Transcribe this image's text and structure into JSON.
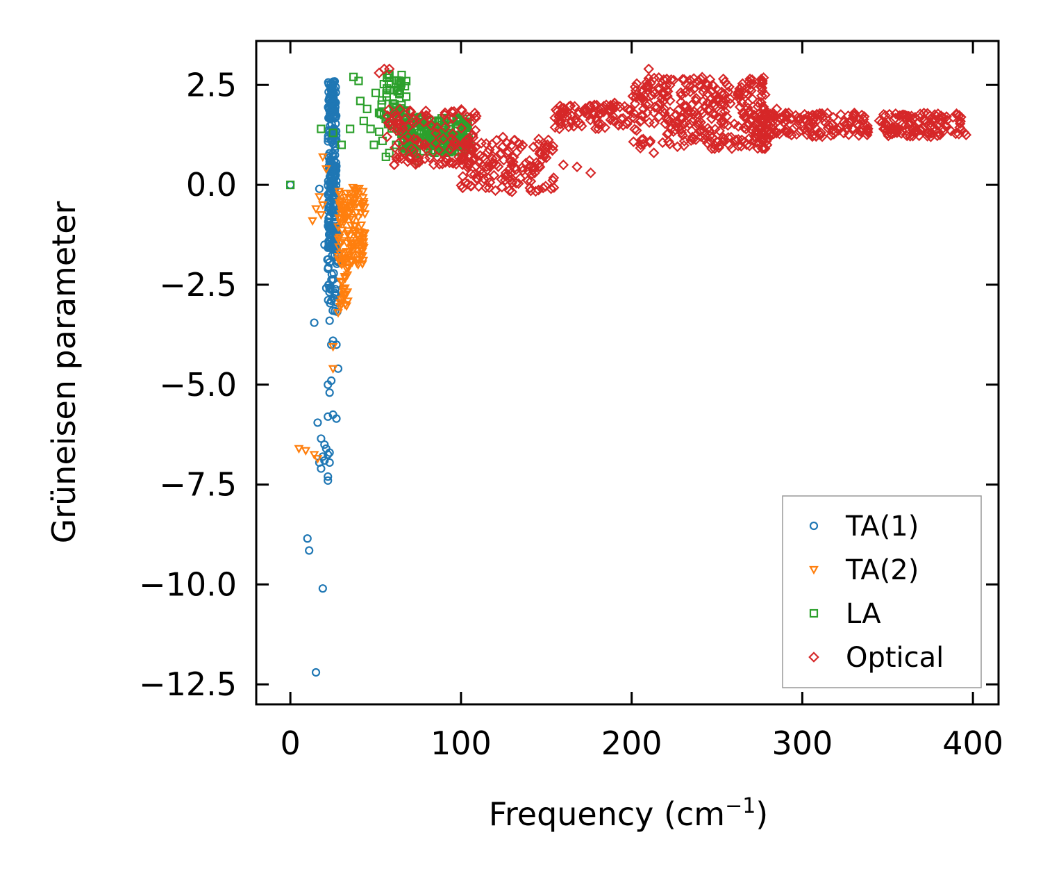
{
  "chart_data": {
    "type": "scatter",
    "xlabel": "Frequency (cm",
    "xlabel_sup": "−1",
    "xlabel_end": ")",
    "ylabel": "Grüneisen parameter",
    "xlim": [
      -20,
      415
    ],
    "ylim": [
      -13.0,
      3.6
    ],
    "xticks": [
      0,
      100,
      200,
      300,
      400
    ],
    "xtick_labels": [
      "0",
      "100",
      "200",
      "300",
      "400"
    ],
    "yticks": [
      2.5,
      0.0,
      -2.5,
      -5.0,
      -7.5,
      -10.0,
      -12.5
    ],
    "ytick_labels": [
      "2.5",
      "0.0",
      "−2.5",
      "−5.0",
      "−7.5",
      "−10.0",
      "−12.5"
    ],
    "legend_position": "lower-right",
    "series": [
      {
        "name": "TA(1)",
        "marker": "circle",
        "color": "#1f77b4",
        "clusters": [
          {
            "x": [
              22,
              27
            ],
            "y": [
              -1.6,
              2.6
            ],
            "n": 260
          },
          {
            "x": [
              21,
              28
            ],
            "y": [
              -3.2,
              -1.2
            ],
            "n": 45
          }
        ],
        "points": [
          [
            0,
            0.0
          ],
          [
            17,
            -0.1
          ],
          [
            20,
            -1.5
          ],
          [
            22,
            -2.1
          ],
          [
            23,
            -2.6
          ],
          [
            24,
            -2.9
          ],
          [
            26,
            -2.7
          ],
          [
            28,
            -1.9
          ],
          [
            14,
            -3.45
          ],
          [
            23,
            -3.4
          ],
          [
            25,
            -3.9
          ],
          [
            27,
            -4.0
          ],
          [
            24,
            -4.0
          ],
          [
            28,
            -4.6
          ],
          [
            22,
            -5.0
          ],
          [
            24,
            -4.9
          ],
          [
            23,
            -5.2
          ],
          [
            16,
            -5.95
          ],
          [
            22,
            -5.8
          ],
          [
            25,
            -5.75
          ],
          [
            27,
            -5.85
          ],
          [
            18,
            -6.35
          ],
          [
            20,
            -6.5
          ],
          [
            21,
            -6.6
          ],
          [
            23,
            -6.7
          ],
          [
            19,
            -6.8
          ],
          [
            20,
            -6.9
          ],
          [
            22,
            -6.75
          ],
          [
            17,
            -6.95
          ],
          [
            23,
            -6.95
          ],
          [
            18,
            -7.1
          ],
          [
            22,
            -7.3
          ],
          [
            22,
            -7.4
          ],
          [
            10,
            -8.85
          ],
          [
            11,
            -9.15
          ],
          [
            19,
            -10.1
          ],
          [
            15,
            -12.2
          ]
        ]
      },
      {
        "name": "TA(2)",
        "marker": "triangle-down",
        "color": "#ff7f0e",
        "clusters": [
          {
            "x": [
              28,
              44
            ],
            "y": [
              -2.0,
              0.0
            ],
            "n": 130
          },
          {
            "x": [
              29,
              34
            ],
            "y": [
              -3.1,
              -1.8
            ],
            "n": 30
          }
        ],
        "points": [
          [
            19,
            0.7
          ],
          [
            21,
            0.4
          ],
          [
            17,
            -0.3
          ],
          [
            19,
            -0.5
          ],
          [
            15,
            -0.6
          ],
          [
            13,
            -0.9
          ],
          [
            18,
            -0.75
          ],
          [
            28,
            -3.2
          ],
          [
            25,
            -4.05
          ],
          [
            25,
            -4.6
          ],
          [
            5,
            -6.6
          ],
          [
            9,
            -6.65
          ],
          [
            14,
            -6.75
          ],
          [
            16,
            -6.85
          ]
        ]
      },
      {
        "name": "LA",
        "marker": "square",
        "color": "#2ca02c",
        "clusters": [
          {
            "x": [
              65,
              105
            ],
            "y": [
              0.8,
              1.7
            ],
            "n": 230
          },
          {
            "x": [
              52,
              68
            ],
            "y": [
              1.3,
              2.9
            ],
            "n": 60
          }
        ],
        "points": [
          [
            0,
            0.0
          ],
          [
            18,
            1.4
          ],
          [
            25,
            1.3
          ],
          [
            30,
            1.0
          ],
          [
            35,
            1.4
          ],
          [
            37,
            2.7
          ],
          [
            40,
            2.6
          ],
          [
            41,
            2.1
          ],
          [
            43,
            1.6
          ],
          [
            45,
            1.9
          ],
          [
            47,
            1.4
          ],
          [
            49,
            1.0
          ],
          [
            50,
            2.3
          ],
          [
            52,
            1.8
          ],
          [
            54,
            1.1
          ],
          [
            56,
            0.7
          ],
          [
            58,
            0.8
          ],
          [
            60,
            1.5
          ],
          [
            62,
            1.0
          ],
          [
            75,
            0.6
          ]
        ]
      },
      {
        "name": "Optical",
        "marker": "diamond",
        "color": "#d62728",
        "clusters": [
          {
            "x": [
              55,
              110
            ],
            "y": [
              0.5,
              1.9
            ],
            "n": 120
          },
          {
            "x": [
              100,
              155
            ],
            "y": [
              -0.2,
              1.2
            ],
            "n": 150
          },
          {
            "x": [
              155,
              200
            ],
            "y": [
              1.4,
              2.0
            ],
            "n": 90
          },
          {
            "x": [
              200,
              280
            ],
            "y": [
              0.9,
              2.7
            ],
            "n": 320
          },
          {
            "x": [
              270,
              340
            ],
            "y": [
              1.2,
              1.8
            ],
            "n": 150
          },
          {
            "x": [
              345,
              395
            ],
            "y": [
              1.2,
              1.8
            ],
            "n": 120
          }
        ],
        "points": [
          [
            52,
            2.8
          ],
          [
            55,
            2.9
          ],
          [
            58,
            2.9
          ],
          [
            160,
            0.5
          ],
          [
            168,
            0.45
          ],
          [
            176,
            0.3
          ],
          [
            190,
            2.05
          ],
          [
            210,
            2.9
          ],
          [
            213,
            0.8
          ],
          [
            256,
            2.5
          ],
          [
            285,
            1.9
          ],
          [
            292,
            1.8
          ],
          [
            338,
            1.25
          ],
          [
            396,
            1.25
          ]
        ]
      }
    ]
  }
}
